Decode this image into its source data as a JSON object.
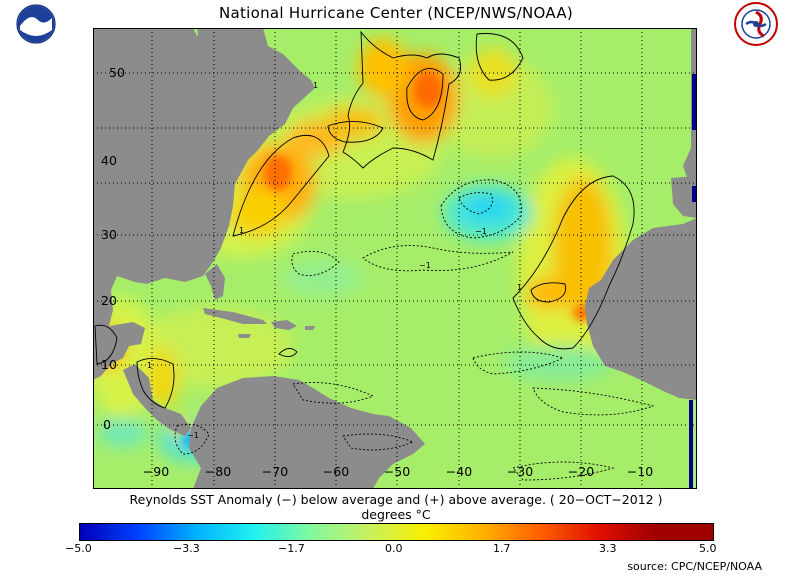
{
  "title": "National Hurricane Center (NCEP/NWS/NOAA)",
  "caption": "Reynolds SST Anomaly (−) below average and (+) above average. ( 20−OCT−2012 )",
  "units": "degrees °C",
  "source": "source:  CPC/NCEP/NOAA",
  "colorbar": {
    "colors": [
      "#0000b8",
      "#0040ff",
      "#00b0ff",
      "#20f0f0",
      "#80f8a0",
      "#c8f060",
      "#f8f000",
      "#ffb000",
      "#ff6000",
      "#e01000",
      "#a00000"
    ],
    "ticks": [
      "−5.0",
      "−3.3",
      "−1.7",
      "0.0",
      "1.7",
      "3.3",
      "5.0"
    ]
  },
  "map": {
    "lon_labels": [
      "−90",
      "−80",
      "−70",
      "−60",
      "−50",
      "−40",
      "−30",
      "−20",
      "−10"
    ],
    "lat_labels": [
      "0",
      "10",
      "20",
      "30",
      "40",
      "50"
    ],
    "contour_labels": [
      "1",
      "−1",
      "1",
      "−1",
      "1",
      "−1",
      "1"
    ]
  },
  "logos": {
    "left": "noaa-logo",
    "right": "nws-logo"
  }
}
